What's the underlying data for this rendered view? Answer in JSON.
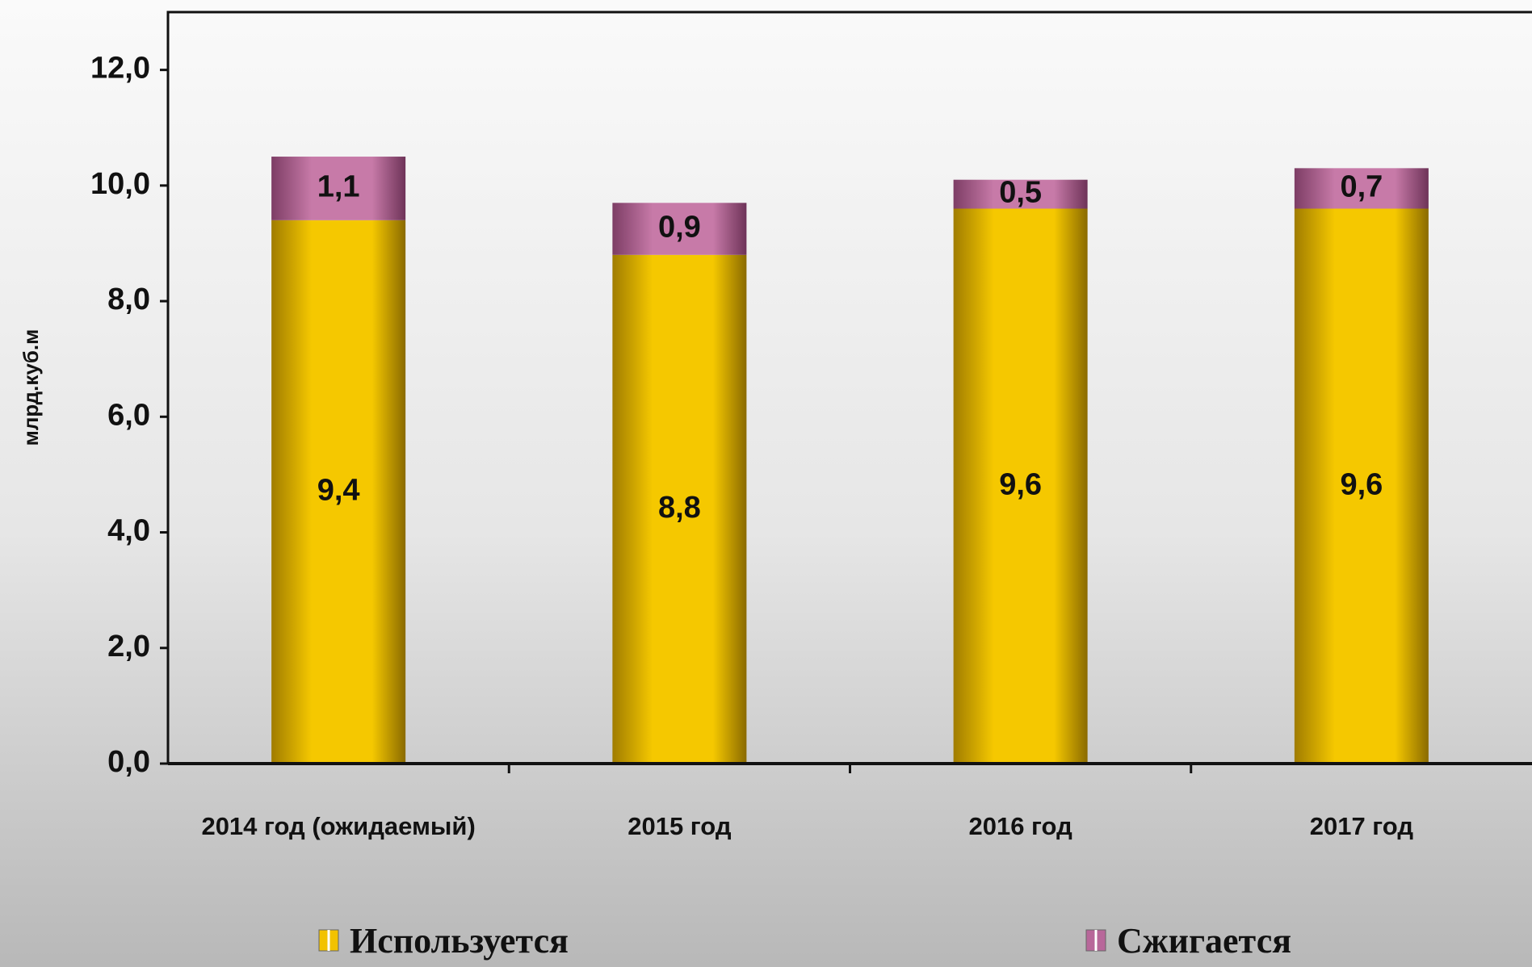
{
  "chart_data": {
    "type": "stacked_bar",
    "y_label": "млрд.куб.м",
    "categories": [
      "2014 год (ожидаемый)",
      "2015 год",
      "2016 год",
      "2017 год"
    ],
    "series": [
      {
        "name": "Используется",
        "color": "#f2c200",
        "values": [
          9.4,
          8.8,
          9.6,
          9.6
        ],
        "value_labels": [
          "9,4",
          "8,8",
          "9,6",
          "9,6"
        ]
      },
      {
        "name": "Сжигается",
        "color": "#b8679a",
        "values": [
          1.1,
          0.9,
          0.5,
          0.7
        ],
        "value_labels": [
          "1,1",
          "0,9",
          "0,5",
          "0,7"
        ]
      }
    ],
    "ylim": [
      0,
      13
    ],
    "yticks": [
      {
        "value": 0,
        "label": "0,0"
      },
      {
        "value": 2,
        "label": "2,0"
      },
      {
        "value": 4,
        "label": "4,0"
      },
      {
        "value": 6,
        "label": "6,0"
      },
      {
        "value": 8,
        "label": "8,0"
      },
      {
        "value": 10,
        "label": "10,0"
      },
      {
        "value": 12,
        "label": "12,0"
      }
    ],
    "legend": "bottom"
  }
}
